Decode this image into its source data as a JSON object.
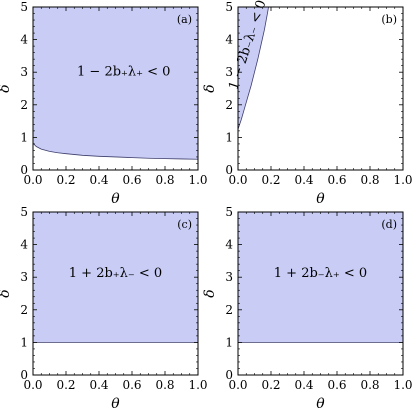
{
  "colors": {
    "region_fill": "#c9cdf6",
    "boundary": "#3d3d6b",
    "frame": "#000000"
  },
  "chart_data": [
    {
      "type": "area",
      "panel_tag": "(a)",
      "region_label": "1 − 2b₊λ₊ < 0",
      "xlabel": "θ",
      "ylabel": "δ",
      "xlim": [
        0,
        1
      ],
      "ylim": [
        0,
        5
      ],
      "xticks": [
        "0.0",
        "0.2",
        "0.4",
        "0.6",
        "0.8",
        "1.0"
      ],
      "yticks": [
        "0",
        "1",
        "2",
        "3",
        "4",
        "5"
      ],
      "shade": "above",
      "boundary": {
        "x": [
          0.0,
          0.02,
          0.05,
          0.1,
          0.15,
          0.2,
          0.3,
          0.4,
          0.5,
          0.6,
          0.7,
          0.8,
          0.9,
          1.0
        ],
        "y": [
          0.82,
          0.72,
          0.64,
          0.57,
          0.53,
          0.5,
          0.45,
          0.42,
          0.4,
          0.38,
          0.36,
          0.35,
          0.34,
          0.33
        ]
      }
    },
    {
      "type": "area",
      "panel_tag": "(b)",
      "region_label": "1 − 2b₋λ₋ < 0",
      "xlabel": "θ",
      "ylabel": "δ",
      "xlim": [
        0,
        1
      ],
      "ylim": [
        0,
        5
      ],
      "xticks": [
        "0.0",
        "0.2",
        "0.4",
        "0.6",
        "0.8",
        "1.0"
      ],
      "yticks": [
        "0",
        "1",
        "2",
        "3",
        "4",
        "5"
      ],
      "shade": "left",
      "boundary": {
        "x": [
          0.0,
          0.02,
          0.04,
          0.06,
          0.08,
          0.1,
          0.12,
          0.14,
          0.16,
          0.18,
          0.185
        ],
        "y": [
          1.25,
          1.55,
          1.9,
          2.25,
          2.6,
          3.0,
          3.4,
          3.85,
          4.3,
          4.85,
          5.0
        ]
      }
    },
    {
      "type": "area",
      "panel_tag": "(c)",
      "region_label": "1 + 2b₊λ₋ < 0",
      "xlabel": "θ",
      "ylabel": "δ",
      "xlim": [
        0,
        1
      ],
      "ylim": [
        0,
        5
      ],
      "xticks": [
        "0.0",
        "0.2",
        "0.4",
        "0.6",
        "0.8",
        "1.0"
      ],
      "yticks": [
        "0",
        "1",
        "2",
        "3",
        "4",
        "5"
      ],
      "shade": "above",
      "boundary": {
        "x": [
          0.0,
          1.0
        ],
        "y": [
          1.0,
          1.0
        ]
      }
    },
    {
      "type": "area",
      "panel_tag": "(d)",
      "region_label": "1 + 2b₋λ₊ < 0",
      "xlabel": "θ",
      "ylabel": "δ",
      "xlim": [
        0,
        1
      ],
      "ylim": [
        0,
        5
      ],
      "xticks": [
        "0.0",
        "0.2",
        "0.4",
        "0.6",
        "0.8",
        "1.0"
      ],
      "yticks": [
        "0",
        "1",
        "2",
        "3",
        "4",
        "5"
      ],
      "shade": "above",
      "boundary": {
        "x": [
          0.0,
          1.0
        ],
        "y": [
          1.0,
          1.0
        ]
      }
    }
  ]
}
